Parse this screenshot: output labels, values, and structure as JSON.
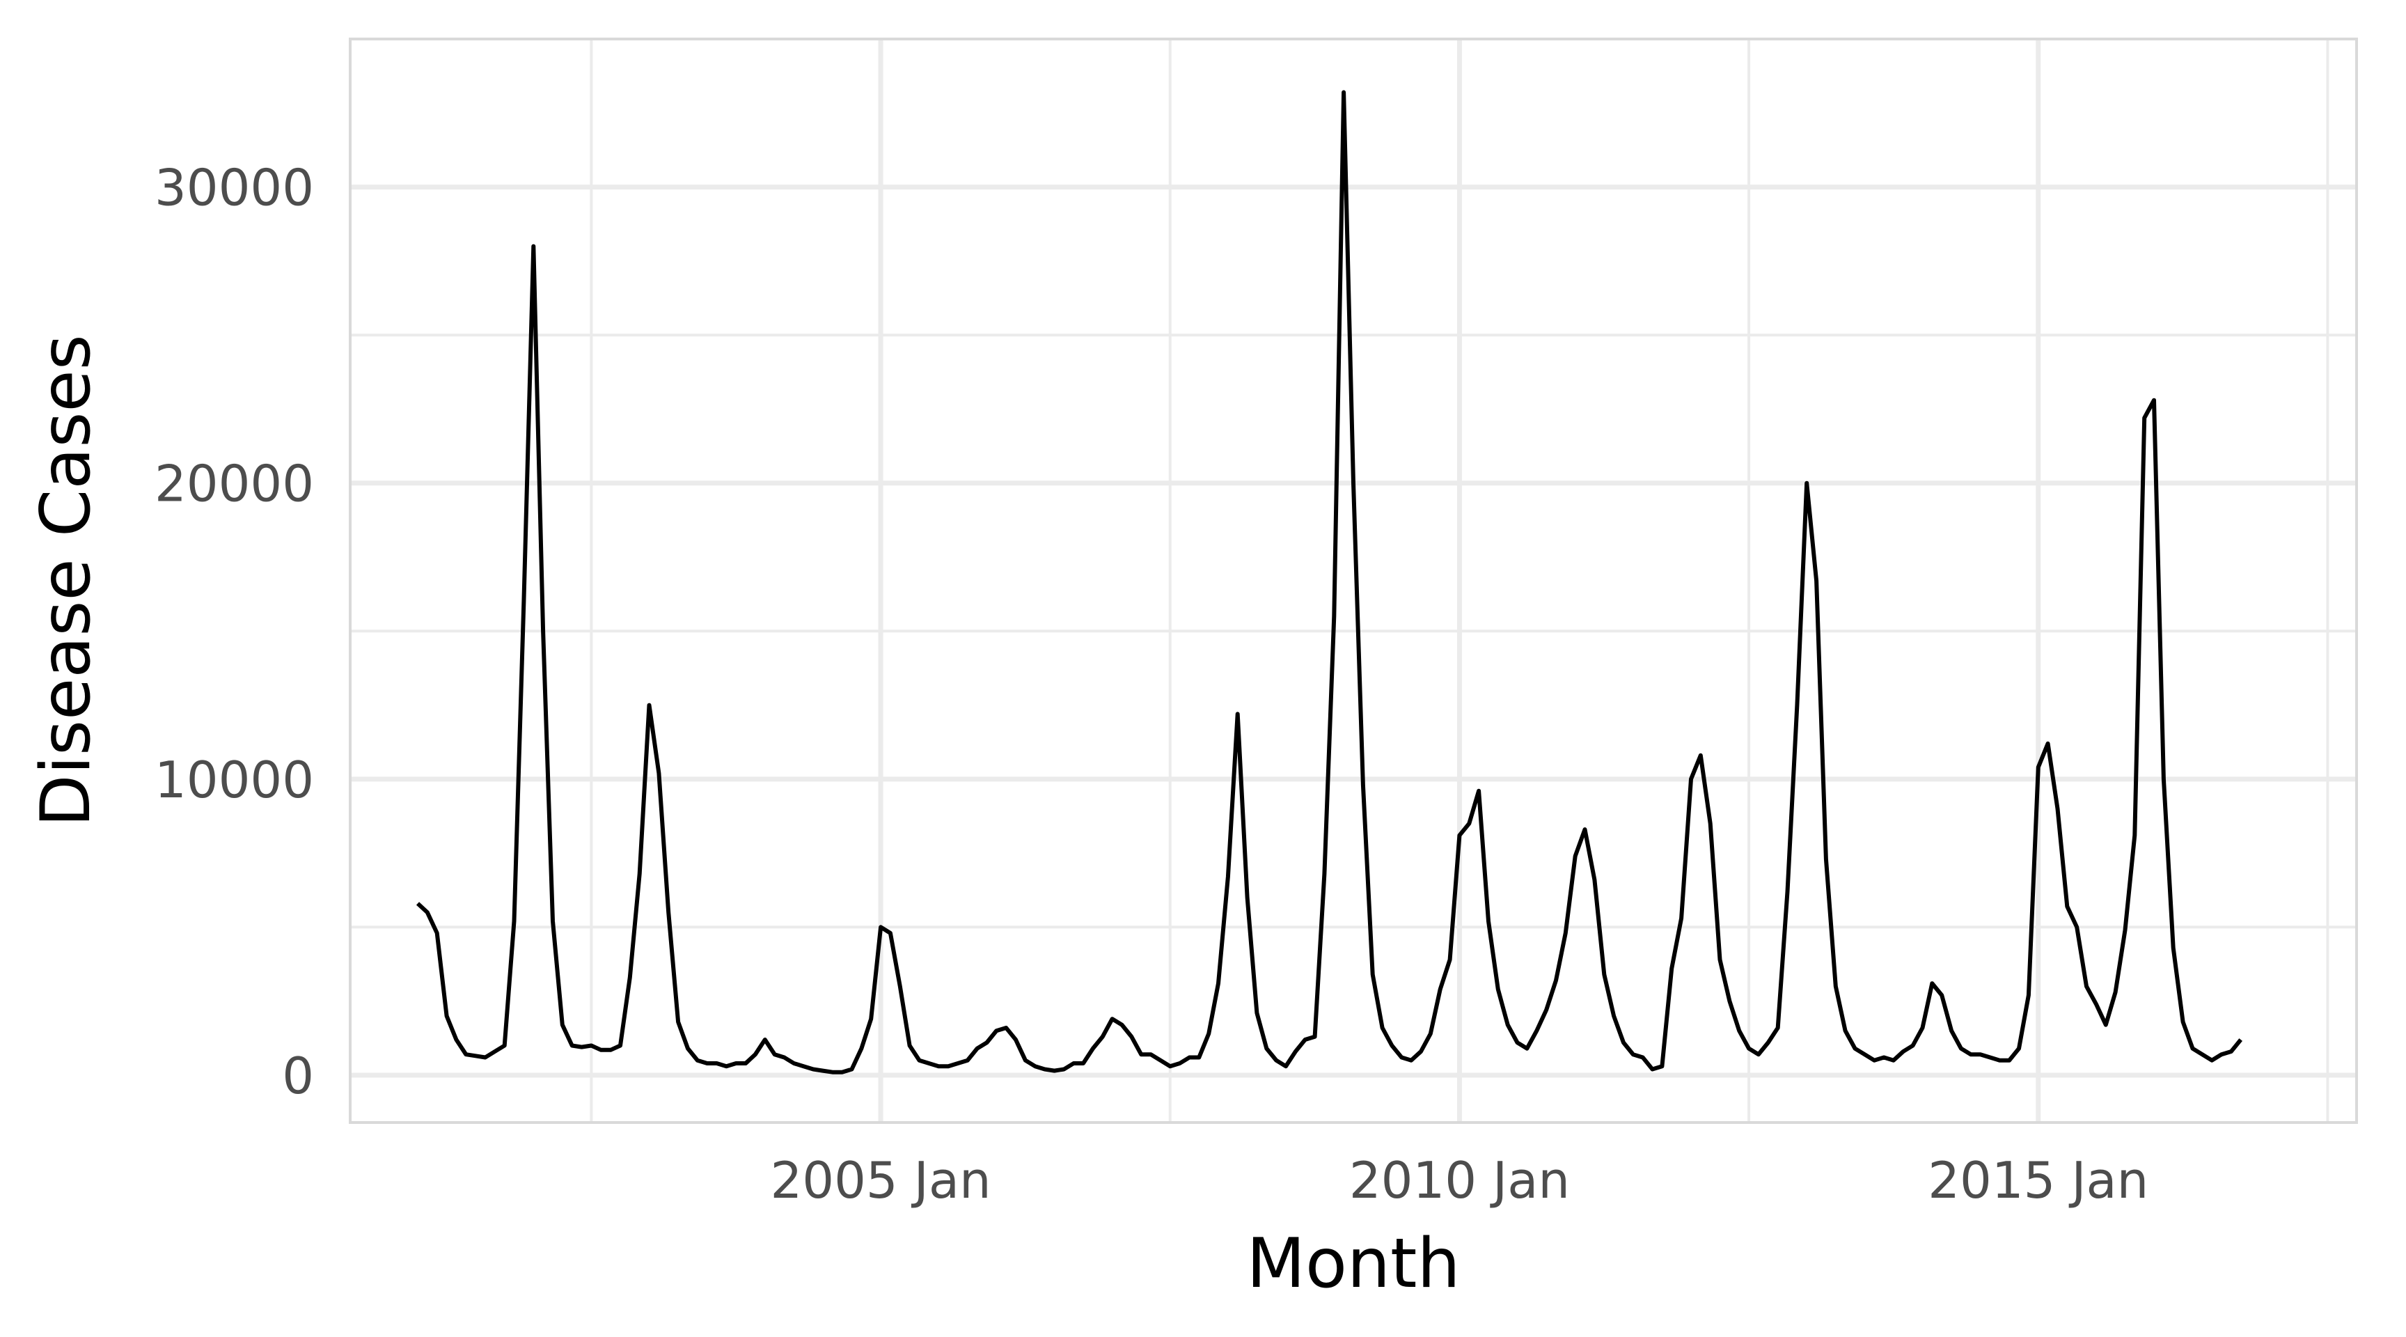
{
  "chart_data": {
    "type": "line",
    "title": "",
    "xlabel": "Month",
    "ylabel": "Disease Cases",
    "x_tick_labels": [
      "2005 Jan",
      "2010 Jan",
      "2015 Jan"
    ],
    "y_ticks": [
      0,
      10000,
      20000,
      30000
    ],
    "xlim": [
      "2000-06",
      "2017-10"
    ],
    "ylim": [
      -1600,
      35000
    ],
    "grid": true,
    "legend": "none",
    "x_start": "2001-01",
    "series": [
      {
        "values": [
          5800,
          5500,
          4800,
          2000,
          1200,
          700,
          650,
          600,
          800,
          1000,
          5200,
          16000,
          28000,
          15000,
          5200,
          1700,
          1000,
          950,
          1000,
          850,
          850,
          1000,
          3300,
          6800,
          12500,
          10200,
          5500,
          1800,
          900,
          500,
          400,
          400,
          300,
          400,
          400,
          700,
          1200,
          700,
          600,
          400,
          300,
          200,
          150,
          100,
          100,
          200,
          900,
          1900,
          5000,
          4800,
          3000,
          1000,
          500,
          400,
          300,
          300,
          400,
          500,
          900,
          1100,
          1500,
          1600,
          1200,
          500,
          300,
          200,
          150,
          200,
          400,
          400,
          900,
          1300,
          1900,
          1700,
          1300,
          700,
          700,
          500,
          300,
          400,
          600,
          600,
          1400,
          3100,
          6700,
          12200,
          6000,
          2100,
          900,
          500,
          300,
          800,
          1200,
          1300,
          6800,
          15500,
          33200,
          20000,
          9800,
          3400,
          1600,
          1000,
          600,
          500,
          800,
          1400,
          2900,
          3900,
          8100,
          8500,
          9600,
          5200,
          2900,
          1700,
          1100,
          900,
          1500,
          2200,
          3200,
          4800,
          7400,
          8300,
          6600,
          3400,
          2000,
          1100,
          700,
          600,
          200,
          300,
          3600,
          5300,
          10000,
          10800,
          8500,
          3900,
          2500,
          1500,
          900,
          700,
          1100,
          1600,
          6200,
          12500,
          20000,
          16700,
          7300,
          3000,
          1500,
          900,
          700,
          500,
          600,
          500,
          800,
          1000,
          1600,
          3100,
          2700,
          1500,
          900,
          700,
          700,
          600,
          500,
          500,
          900,
          2700,
          10400,
          11200,
          9000,
          5700,
          5000,
          3000,
          2400,
          1700,
          2800,
          4900,
          8100,
          22200,
          22800,
          10000,
          4300,
          1800,
          900,
          700,
          500,
          700,
          800,
          1200
        ]
      }
    ]
  }
}
